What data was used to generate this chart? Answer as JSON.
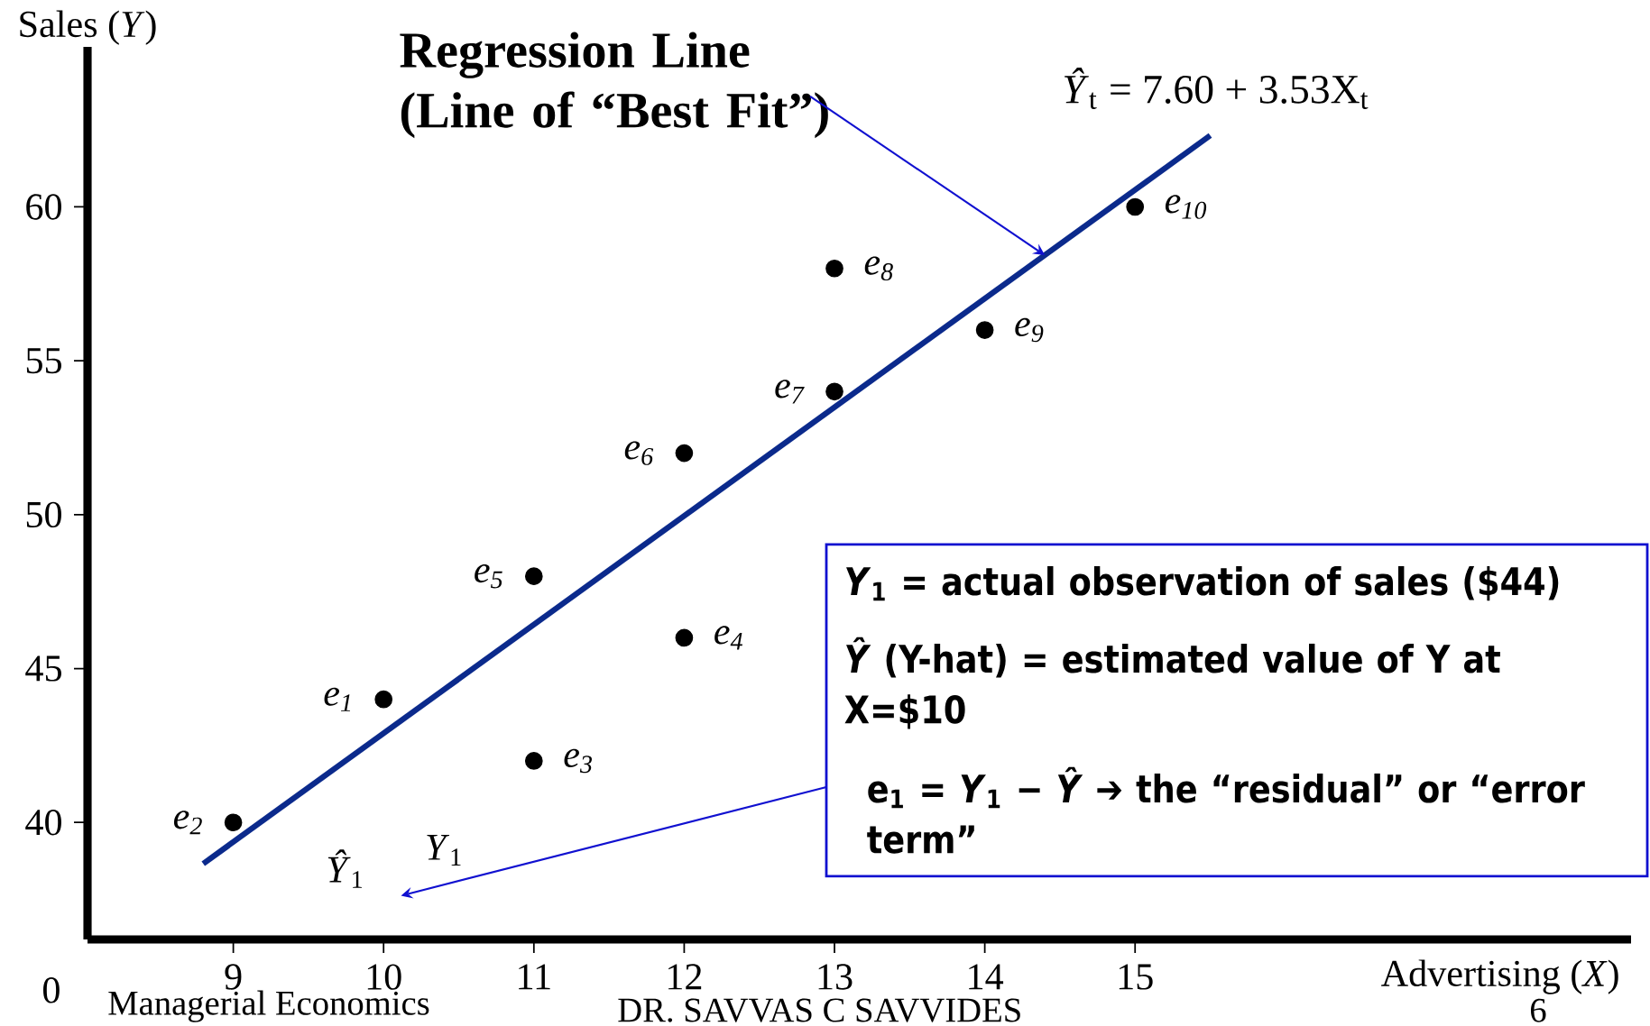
{
  "chart_data": {
    "type": "scatter",
    "xlabel": "Advertising (*X*)",
    "ylabel": "Sales (*Y*)",
    "xlim": [
      8.03,
      18.3
    ],
    "ylim": [
      36.2,
      65.2
    ],
    "xticks": [
      9,
      10,
      11,
      12,
      13,
      14,
      15
    ],
    "yticks": [
      40,
      45,
      50,
      55,
      60
    ],
    "marker": "circle",
    "grid": false,
    "series": [
      {
        "color": "#000000",
        "x": [
          10,
          9,
          11,
          12,
          11,
          12,
          13,
          13,
          14,
          15
        ],
        "values": [
          44,
          40,
          42,
          46,
          48,
          52,
          54,
          58,
          56,
          60
        ]
      },
      {
        "type": "line",
        "color": "#0b2a8c",
        "marker": "none",
        "x": [
          8.8,
          15.5
        ],
        "values": [
          38.66,
          62.32
        ]
      }
    ],
    "annotations": [
      {
        "text": "e$_{1}$",
        "x": 10,
        "y": 44
      },
      {
        "text": "e$_{2}$",
        "x": 9,
        "y": 40
      },
      {
        "text": "e$_{3}$",
        "x": 11,
        "y": 42
      },
      {
        "text": "e$_{4}$",
        "x": 12,
        "y": 46
      },
      {
        "text": "e$_{5}$",
        "x": 11,
        "y": 48
      },
      {
        "text": "e$_{6}$",
        "x": 12,
        "y": 52
      },
      {
        "text": "e$_{7}$",
        "x": 13,
        "y": 54
      },
      {
        "text": "e$_{8}$",
        "x": 13,
        "y": 58
      },
      {
        "text": "e$_{9}$",
        "x": 14,
        "y": 56
      },
      {
        "text": "e$_{10}$",
        "x": 15,
        "y": 60
      },
      {
        "text": "Regression Line (Line of “Best Fit”)",
        "x": 14.4,
        "y": 58.43
      },
      "*Ŷ*$_{t}$ = 7.60 + 3.53X$_{t}$",
      "*Ŷ*$_{1}$",
      "*Y*$_{1}$",
      "*Y*$_{1}$ = actual observation of sales ($44)",
      "*Ŷ* (Y-hat) = estimated value of Y at X=$10",
      "e$_{1}$ = *Y*$_{1}$ − *Ŷ* ➔ the “residual” or “error term”",
      "0",
      "Managerial Economics",
      "DR. SAVVAS C SAVVIDES",
      "6"
    ]
  }
}
